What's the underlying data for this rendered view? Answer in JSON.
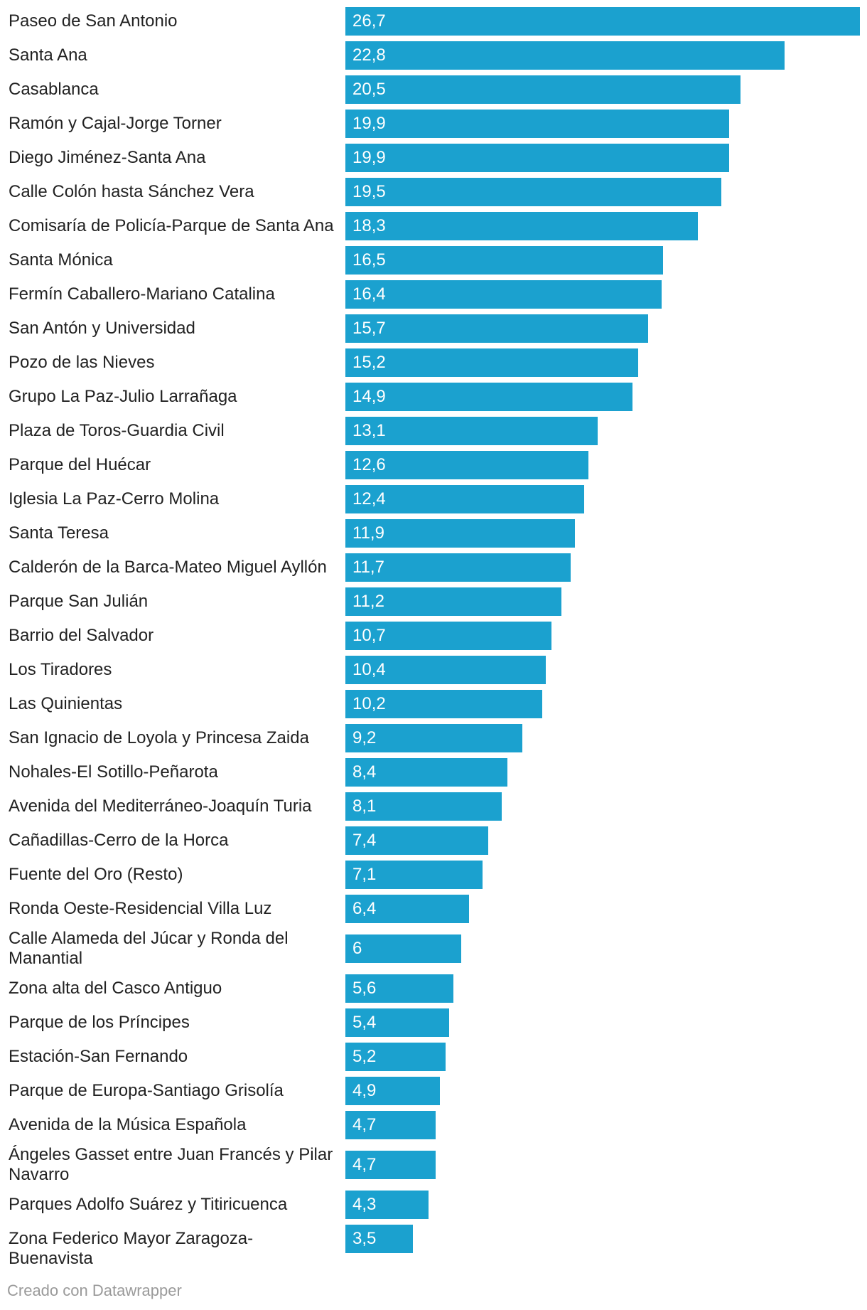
{
  "chart_data": {
    "type": "bar",
    "orientation": "horizontal",
    "title": "",
    "xlabel": "",
    "ylabel": "",
    "xlim": [
      0,
      26.7
    ],
    "bar_color": "#1ba1cf",
    "categories": [
      "Paseo de San Antonio",
      "Santa Ana",
      "Casablanca",
      "Ramón y Cajal-Jorge Torner",
      "Diego Jiménez-Santa Ana",
      "Calle Colón hasta Sánchez Vera",
      "Comisaría de Policía-Parque de Santa Ana",
      "Santa Mónica",
      "Fermín Caballero-Mariano Catalina",
      "San Antón y Universidad",
      "Pozo de las Nieves",
      "Grupo La Paz-Julio Larrañaga",
      "Plaza de Toros-Guardia Civil",
      "Parque del Huécar",
      "Iglesia La Paz-Cerro Molina",
      "Santa Teresa",
      "Calderón de la Barca-Mateo Miguel Ayllón",
      "Parque San Julián",
      "Barrio del Salvador",
      "Los Tiradores",
      "Las Quinientas",
      "San Ignacio de Loyola y Princesa Zaida",
      "Nohales-El Sotillo-Peñarota",
      "Avenida del Mediterráneo-Joaquín Turia",
      "Cañadillas-Cerro de la Horca",
      "Fuente del Oro (Resto)",
      "Ronda Oeste-Residencial Villa Luz",
      "Calle Alameda del Júcar y Ronda del Manantial",
      "Zona alta del Casco Antiguo",
      "Parque de los Príncipes",
      "Estación-San Fernando",
      "Parque de Europa-Santiago Grisolía",
      "Avenida de la Música Española",
      "Ángeles Gasset entre Juan Francés y Pilar Navarro",
      "Parques Adolfo Suárez y Titiricuenca",
      "Zona Federico Mayor Zaragoza-Buenavista"
    ],
    "values": [
      26.7,
      22.8,
      20.5,
      19.9,
      19.9,
      19.5,
      18.3,
      16.5,
      16.4,
      15.7,
      15.2,
      14.9,
      13.1,
      12.6,
      12.4,
      11.9,
      11.7,
      11.2,
      10.7,
      10.4,
      10.2,
      9.2,
      8.4,
      8.1,
      7.4,
      7.1,
      6.4,
      6,
      5.6,
      5.4,
      5.2,
      4.9,
      4.7,
      4.7,
      4.3,
      3.5
    ],
    "value_labels": [
      "26,7",
      "22,8",
      "20,5",
      "19,9",
      "19,9",
      "19,5",
      "18,3",
      "16,5",
      "16,4",
      "15,7",
      "15,2",
      "14,9",
      "13,1",
      "12,6",
      "12,4",
      "11,9",
      "11,7",
      "11,2",
      "10,7",
      "10,4",
      "10,2",
      "9,2",
      "8,4",
      "8,1",
      "7,4",
      "7,1",
      "6,4",
      "6",
      "5,6",
      "5,4",
      "5,2",
      "4,9",
      "4,7",
      "4,7",
      "4,3",
      "3,5"
    ]
  },
  "footer": {
    "credit": "Creado con Datawrapper"
  }
}
